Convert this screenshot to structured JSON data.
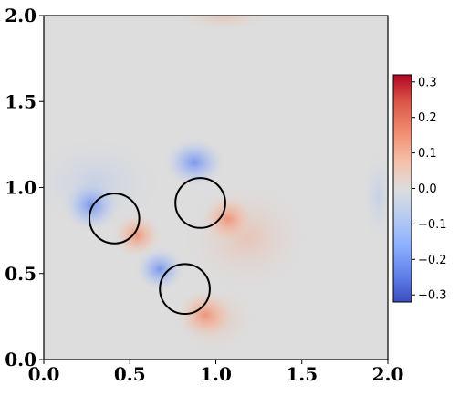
{
  "chart_data": {
    "type": "heatmap",
    "title": "",
    "xlabel": "",
    "ylabel": "",
    "xlim": [
      0.0,
      2.0
    ],
    "ylim": [
      0.0,
      2.0
    ],
    "x_ticks": [
      0.0,
      0.5,
      1.0,
      1.5,
      2.0
    ],
    "y_ticks": [
      0.0,
      0.5,
      1.0,
      1.5,
      2.0
    ],
    "x_tick_labels": [
      "0.0",
      "0.5",
      "1.0",
      "1.5",
      "2.0"
    ],
    "y_tick_labels": [
      "0.0",
      "0.5",
      "1.0",
      "1.5",
      "2.0"
    ],
    "colormap": "coolwarm",
    "colorbar": {
      "vmin": -0.32,
      "vmax": 0.32,
      "ticks": [
        0.3,
        0.2,
        0.1,
        0.0,
        -0.1,
        -0.2,
        -0.3
      ],
      "tick_labels": [
        "0.3",
        "0.2",
        "0.1",
        "0.0",
        "−0.1",
        "−0.2",
        "−0.3"
      ],
      "low_color": "#3b4cc0",
      "mid_color": "#dddddd",
      "high_color": "#b40426"
    },
    "circles": [
      {
        "cx": 0.41,
        "cy": 0.82,
        "r": 0.145
      },
      {
        "cx": 0.91,
        "cy": 0.91,
        "r": 0.145
      },
      {
        "cx": 0.82,
        "cy": 0.41,
        "r": 0.145
      }
    ],
    "grid": false
  }
}
